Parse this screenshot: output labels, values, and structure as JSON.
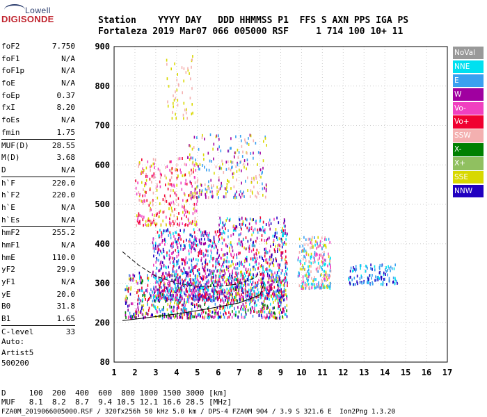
{
  "logo": {
    "lowell": "Lowell",
    "digisonde": "DIGISONDE"
  },
  "header": {
    "line1": "Station    YYYY DAY   DDD HHMMSS P1  FFS S AXN PPS IGA PS",
    "line2": "Fortaleza 2019 Mar07 066 005000 RSF     1 714 100 10+ 11"
  },
  "params": [
    {
      "name": "foF2",
      "value": "7.750"
    },
    {
      "name": "foF1",
      "value": "N/A"
    },
    {
      "name": "foF1p",
      "value": "N/A"
    },
    {
      "name": "foE",
      "value": "N/A"
    },
    {
      "name": "foEp",
      "value": "0.37"
    },
    {
      "name": "fxI",
      "value": "8.20"
    },
    {
      "name": "foEs",
      "value": "N/A"
    },
    {
      "name": "fmin",
      "value": "1.75"
    },
    {
      "name": "MUF(D)",
      "value": "28.55"
    },
    {
      "name": "M(D)",
      "value": "3.68"
    },
    {
      "name": "D",
      "value": "N/A"
    },
    {
      "name": "h`F",
      "value": "220.0"
    },
    {
      "name": "h`F2",
      "value": "220.0"
    },
    {
      "name": "h`E",
      "value": "N/A"
    },
    {
      "name": "h`Es",
      "value": "N/A"
    },
    {
      "name": "hmF2",
      "value": "255.2"
    },
    {
      "name": "hmF1",
      "value": "N/A"
    },
    {
      "name": "hmE",
      "value": "110.0"
    },
    {
      "name": "yF2",
      "value": "29.9"
    },
    {
      "name": "yF1",
      "value": "N/A"
    },
    {
      "name": "yE",
      "value": "20.0"
    },
    {
      "name": "B0",
      "value": "31.8"
    },
    {
      "name": "B1",
      "value": "1.65"
    },
    {
      "name": "C-level",
      "value": "33"
    }
  ],
  "auto": {
    "line1": "Auto:",
    "line2": "Artist5",
    "line3": "500200"
  },
  "legend": [
    {
      "label": "NoVal",
      "color": "#999999"
    },
    {
      "label": "NNE",
      "color": "#00e0f0"
    },
    {
      "label": "E",
      "color": "#3aa0f0"
    },
    {
      "label": "W",
      "color": "#a000a0"
    },
    {
      "label": "Vo-",
      "color": "#f040c0"
    },
    {
      "label": "Vo+",
      "color": "#f00030"
    },
    {
      "label": "SSW",
      "color": "#f4b0b0"
    },
    {
      "label": "X-",
      "color": "#008000"
    },
    {
      "label": "X+",
      "color": "#90c060"
    },
    {
      "label": "SSE",
      "color": "#d8d800"
    },
    {
      "label": "NNW",
      "color": "#2000c0"
    }
  ],
  "chart_data": {
    "type": "scatter",
    "xlim": [
      1,
      17
    ],
    "ylim": [
      80,
      900
    ],
    "x_ticks": [
      "1",
      "2",
      "3",
      "4",
      "5",
      "6",
      "7",
      "8",
      "9",
      "10",
      "11",
      "12",
      "13",
      "14",
      "15",
      "16",
      "17"
    ],
    "y_ticks": [
      "80",
      "200",
      "300",
      "400",
      "500",
      "600",
      "700",
      "800",
      "900"
    ],
    "y_tick_values": [
      80,
      200,
      300,
      400,
      500,
      600,
      700,
      800,
      900
    ],
    "grid": true,
    "clusters": [
      {
        "x": [
          1.5,
          9.3
        ],
        "y": [
          215,
          330
        ],
        "count": 900,
        "palette": [
          "#f00030",
          "#f040c0",
          "#a000a0",
          "#3aa0f0",
          "#00e0f0",
          "#d8d800",
          "#008000",
          "#2000c0"
        ]
      },
      {
        "x": [
          2.8,
          6.0
        ],
        "y": [
          260,
          440
        ],
        "count": 700,
        "palette": [
          "#3aa0f0",
          "#00e0f0",
          "#a000a0",
          "#f040c0",
          "#f00030",
          "#2000c0"
        ]
      },
      {
        "x": [
          6.0,
          9.3
        ],
        "y": [
          260,
          470
        ],
        "count": 700,
        "palette": [
          "#f00030",
          "#f040c0",
          "#a000a0",
          "#3aa0f0",
          "#00e0f0",
          "#d8d800",
          "#2000c0"
        ]
      },
      {
        "x": [
          2.0,
          5.0
        ],
        "y": [
          450,
          620
        ],
        "count": 300,
        "palette": [
          "#d8d800",
          "#f4b0b0",
          "#f00030",
          "#f040c0"
        ]
      },
      {
        "x": [
          4.5,
          8.3
        ],
        "y": [
          520,
          680
        ],
        "count": 250,
        "palette": [
          "#d8d800",
          "#f4b0b0",
          "#3aa0f0",
          "#a000a0"
        ]
      },
      {
        "x": [
          3.3,
          4.8
        ],
        "y": [
          720,
          880
        ],
        "count": 50,
        "palette": [
          "#d8d800",
          "#f4b0b0"
        ]
      },
      {
        "x": [
          9.8,
          11.4
        ],
        "y": [
          290,
          420
        ],
        "count": 250,
        "palette": [
          "#00e0f0",
          "#3aa0f0",
          "#d8d800",
          "#f4b0b0",
          "#f040c0"
        ]
      },
      {
        "x": [
          12.2,
          14.6
        ],
        "y": [
          300,
          350
        ],
        "count": 120,
        "palette": [
          "#2000c0",
          "#3aa0f0",
          "#00e0f0"
        ]
      }
    ],
    "trace_lower": {
      "x": [
        1.4,
        2.5,
        4.0,
        5.5,
        7.0,
        8.0,
        8.2
      ],
      "y": [
        205,
        212,
        222,
        235,
        250,
        270,
        300
      ]
    },
    "trace_upper": {
      "x": [
        1.4,
        2.2,
        3.0,
        4.0,
        5.0,
        6.0,
        7.0,
        7.8,
        8.0
      ],
      "y": [
        380,
        345,
        318,
        300,
        292,
        292,
        298,
        315,
        330
      ]
    }
  },
  "bottom": {
    "d_line": "D     100  200  400  600  800 1000 1500 3000 [km]",
    "muf_line": "MUF   8.1  8.2  8.7  9.4 10.5 12.1 16.6 28.5 [MHz]",
    "footer": "FZA0M_2019066005000.RSF / 320fx256h 50 kHz 5.0 km / DPS-4 FZA0M 904 / 3.9 S 321.6 E  Ion2Png 1.3.20"
  }
}
